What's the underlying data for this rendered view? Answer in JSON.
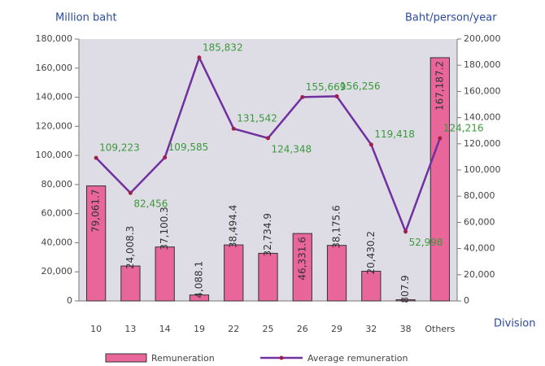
{
  "chart_data": {
    "type": "combo",
    "y_label": "Million baht",
    "y2_label": "Baht/person/year",
    "x_label": "Division",
    "categories": [
      "10",
      "13",
      "14",
      "19",
      "22",
      "25",
      "26",
      "29",
      "32",
      "38",
      "Others"
    ],
    "series": [
      {
        "name": "Remuneration",
        "type": "bar",
        "color": "#e8669a",
        "values": [
          79061.7,
          24008.3,
          37100.3,
          4088.1,
          38494.4,
          32734.9,
          46331.6,
          38175.6,
          20430.2,
          807.9,
          167187.2
        ],
        "value_labels": [
          "79,061.7",
          "24,008.3",
          "37,100.3",
          "4,088.1",
          "38,494.4",
          "32,734.9",
          "46,331.6",
          "38,175.6",
          "20,430.2",
          "807.9",
          "167,187.2"
        ]
      },
      {
        "name": "Average remuneration",
        "type": "line",
        "axis": "y2",
        "color": "#7030a0",
        "marker_color": "#a0204a",
        "values": [
          109223,
          82456,
          109585,
          185832,
          131542,
          124348,
          155669,
          156256,
          119418,
          52998,
          124216
        ],
        "value_labels": [
          "109,223",
          "82,456",
          "109,585",
          "185,832",
          "131,542",
          "124,348",
          "155,669",
          "156,256",
          "119,418",
          "52,998",
          "124,216"
        ]
      }
    ],
    "ylim": [
      0,
      180000
    ],
    "yticks": [
      0,
      {
        "value": 20000,
        "label": "20,000"
      },
      {
        "value": 40000,
        "label": "40,000"
      },
      {
        "value": 60000,
        "label": "60,000"
      },
      {
        "value": 80000,
        "label": "80,000"
      },
      {
        "value": 100000,
        "label": "100,000"
      },
      {
        "value": 120000,
        "label": "120,000"
      },
      {
        "value": 140000,
        "label": "140,000"
      },
      {
        "value": 160000,
        "label": "160,000"
      },
      {
        "value": 180000,
        "label": "180,000"
      }
    ],
    "y2lim": [
      0,
      200000
    ],
    "y2ticks": [
      0,
      {
        "value": 20000,
        "label": "20,000"
      },
      {
        "value": 40000,
        "label": "40,000"
      },
      {
        "value": 60000,
        "label": "60,000"
      },
      {
        "value": 80000,
        "label": "80,000"
      },
      {
        "value": 100000,
        "label": "100,000"
      },
      {
        "value": 120000,
        "label": "120,000"
      },
      {
        "value": 140000,
        "label": "140,000"
      },
      {
        "value": 160000,
        "label": "160,000"
      },
      {
        "value": 180000,
        "label": "180,000"
      },
      {
        "value": 200000,
        "label": "200,000"
      }
    ],
    "grid": false
  }
}
